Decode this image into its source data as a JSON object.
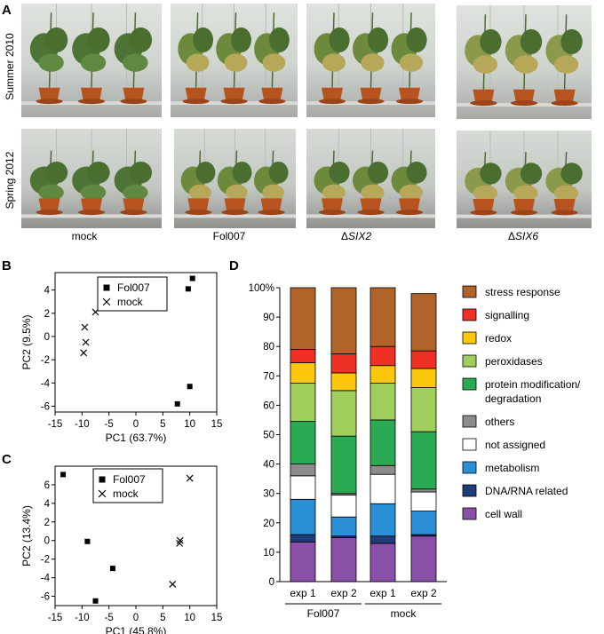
{
  "panel_a": {
    "letter": "A",
    "row_labels": [
      "Summer 2010",
      "Spring 2012"
    ],
    "column_labels": [
      "mock",
      "Fol007",
      "SIX2",
      "SIX6"
    ],
    "delta_symbol": "Δ"
  },
  "chart_data": [
    {
      "panel": "B",
      "type": "scatter",
      "xlabel": "PC1 (63.7%)",
      "ylabel": "PC2 (9.5%)",
      "xlim": [
        -15,
        15
      ],
      "ylim": [
        -6.5,
        5.5
      ],
      "xticks": [
        -15,
        -10,
        -5,
        0,
        5,
        10,
        15
      ],
      "yticks": [
        -6,
        -4,
        -2,
        0,
        2,
        4
      ],
      "legend": "top-right",
      "series": [
        {
          "name": "Fol007",
          "marker": "square",
          "points": [
            [
              10.5,
              5.0
            ],
            [
              9.7,
              4.1
            ],
            [
              10.0,
              -4.3
            ],
            [
              7.7,
              -5.8
            ]
          ]
        },
        {
          "name": "mock",
          "marker": "x",
          "points": [
            [
              -7.5,
              2.1
            ],
            [
              -9.5,
              0.8
            ],
            [
              -9.3,
              -0.5
            ],
            [
              -9.7,
              -1.4
            ]
          ]
        }
      ]
    },
    {
      "panel": "C",
      "type": "scatter",
      "xlabel": "PC1 (45.8%)",
      "ylabel": "PC2 (13.4%)",
      "xlim": [
        -15,
        15
      ],
      "ylim": [
        -7,
        8
      ],
      "xticks": [
        -15,
        -10,
        -5,
        0,
        5,
        10,
        15
      ],
      "yticks": [
        -6,
        -4,
        -2,
        0,
        2,
        4,
        6
      ],
      "legend": "top-center",
      "series": [
        {
          "name": "Fol007",
          "marker": "square",
          "points": [
            [
              -13.5,
              7.1
            ],
            [
              -9.0,
              -0.1
            ],
            [
              -4.3,
              -3.0
            ],
            [
              -7.5,
              -6.5
            ]
          ]
        },
        {
          "name": "mock",
          "marker": "x",
          "points": [
            [
              10.0,
              6.7
            ],
            [
              8.2,
              0.0
            ],
            [
              8.1,
              -0.3
            ],
            [
              6.8,
              -4.7
            ]
          ]
        }
      ]
    },
    {
      "panel": "D",
      "type": "bar",
      "stacked": true,
      "ylim": [
        0,
        100
      ],
      "yticks": [
        "0",
        "10",
        "20",
        "30",
        "40",
        "50",
        "60",
        "70",
        "80",
        "90",
        "100%"
      ],
      "categories": [
        "exp 1",
        "exp 2",
        "exp 1",
        "exp 2"
      ],
      "groups": [
        {
          "label": "Fol007",
          "span": [
            0,
            1
          ]
        },
        {
          "label": "mock",
          "span": [
            2,
            3
          ]
        }
      ],
      "legend": "right",
      "series": [
        {
          "name": "cell wall",
          "color": "#8a4fa6",
          "values": [
            13.5,
            15,
            13,
            15.5
          ]
        },
        {
          "name": "DNA/RNA related",
          "color": "#1f3d7a",
          "values": [
            2.5,
            0.5,
            2.5,
            0.5
          ]
        },
        {
          "name": "metabolism",
          "color": "#2b8fd6",
          "values": [
            12,
            6.5,
            11,
            8
          ]
        },
        {
          "name": "not assigned",
          "color": "#ffffff",
          "values": [
            8,
            7.5,
            10,
            6.5
          ]
        },
        {
          "name": "others",
          "color": "#8c8c8c",
          "values": [
            4,
            0.5,
            3,
            1
          ]
        },
        {
          "name": "protein modification/ degradation",
          "color": "#2aaa52",
          "values": [
            14.5,
            19.5,
            15.5,
            19.5
          ]
        },
        {
          "name": "peroxidases",
          "color": "#9fce5c",
          "values": [
            13,
            15.5,
            12.5,
            15
          ]
        },
        {
          "name": "redox",
          "color": "#fdc70d",
          "values": [
            7,
            6,
            6,
            6.5
          ]
        },
        {
          "name": "signalling",
          "color": "#ee3124",
          "values": [
            4.5,
            6.5,
            6.5,
            6
          ]
        },
        {
          "name": "stress response",
          "color": "#b0642a",
          "values": [
            21,
            22.5,
            20,
            19.5
          ]
        }
      ],
      "legend_order": [
        "stress response",
        "signalling",
        "redox",
        "peroxidases",
        "protein modification/ degradation",
        "others",
        "not assigned",
        "metabolism",
        "DNA/RNA related",
        "cell wall"
      ]
    }
  ]
}
